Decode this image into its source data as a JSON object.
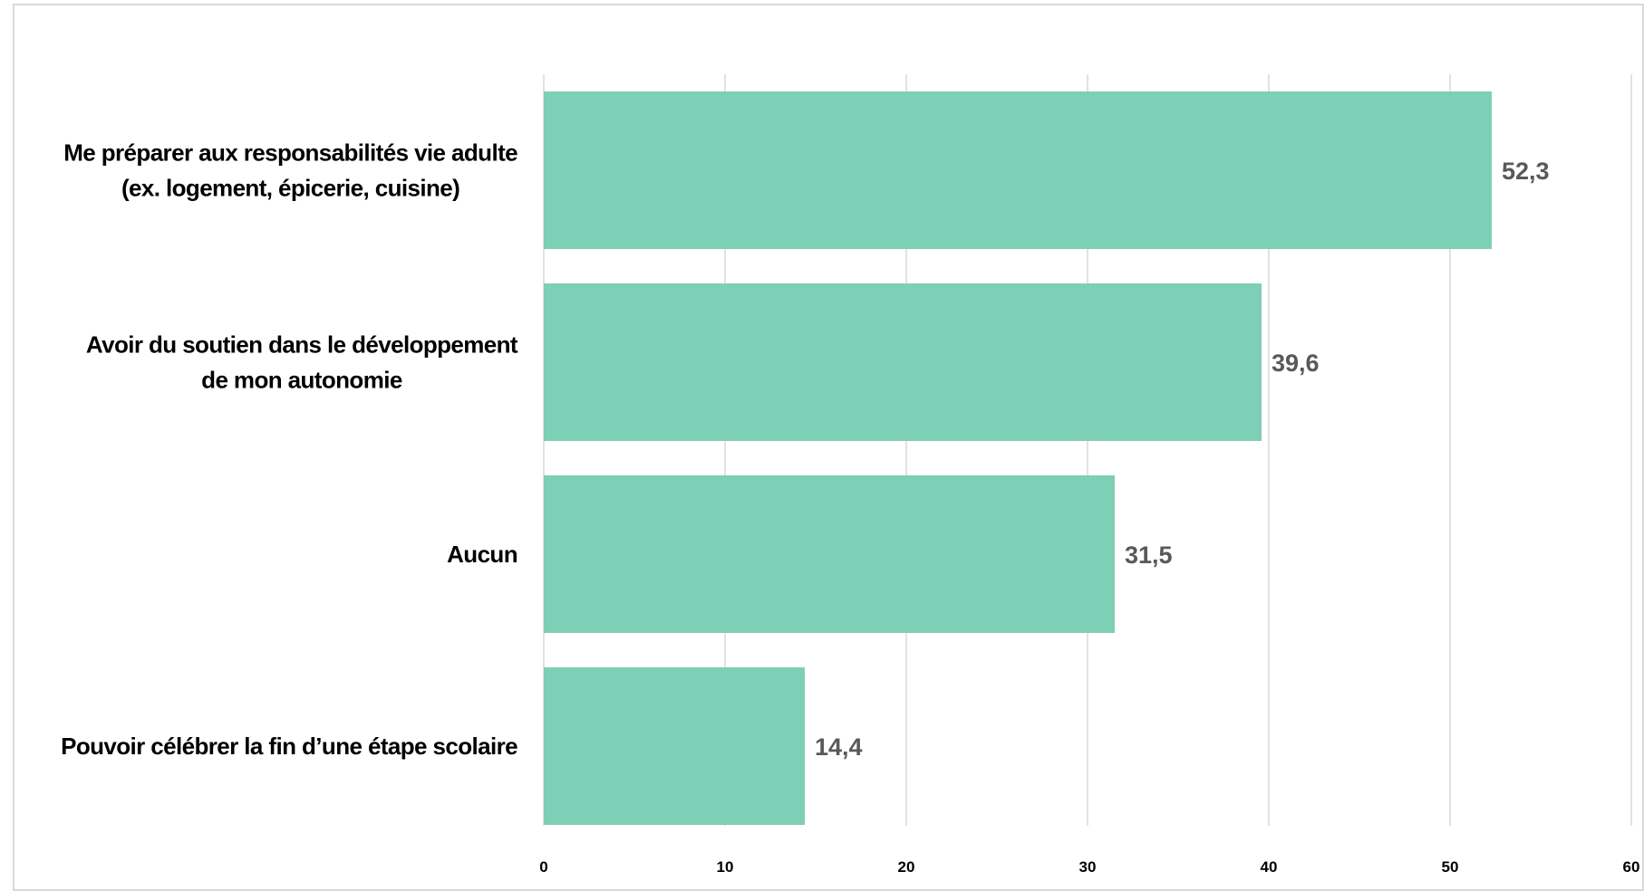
{
  "chart_data": {
    "type": "bar",
    "orientation": "horizontal",
    "title": "",
    "xlabel": "",
    "ylabel": "",
    "categories": [
      [
        "Me préparer aux responsabilités vie adulte",
        "(ex. logement, épicerie, cuisine)"
      ],
      [
        "Avoir du soutien dans le développement",
        "de mon autonomie"
      ],
      [
        "Aucun"
      ],
      [
        "Pouvoir célébrer la fin d’une étape scolaire"
      ]
    ],
    "values": [
      52.3,
      39.6,
      31.5,
      14.4
    ],
    "value_labels": [
      "52,3",
      "39,6",
      "31,5",
      "14,4"
    ],
    "xlim": [
      0,
      60
    ],
    "xticks": [
      0,
      10,
      20,
      30,
      40,
      50,
      60
    ],
    "grid": "vertical",
    "legend": "none",
    "bar_color": "#7dcfb6",
    "value_label_color": "#595959"
  }
}
